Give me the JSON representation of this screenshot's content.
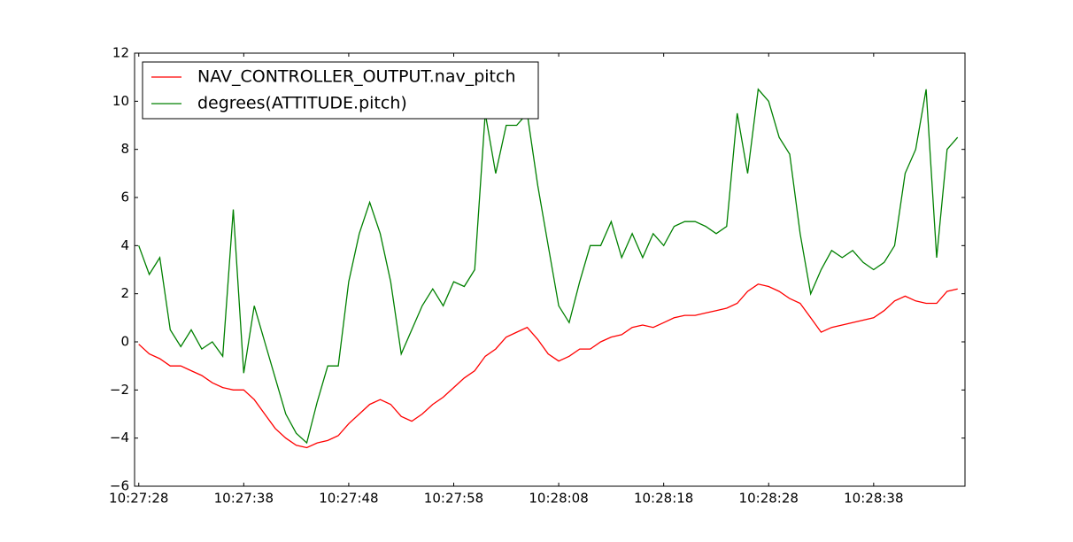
{
  "chart_data": {
    "type": "line",
    "x": [
      "10:27:28",
      "10:27:29",
      "10:27:30",
      "10:27:31",
      "10:27:32",
      "10:27:33",
      "10:27:34",
      "10:27:35",
      "10:27:36",
      "10:27:37",
      "10:27:38",
      "10:27:39",
      "10:27:40",
      "10:27:41",
      "10:27:42",
      "10:27:43",
      "10:27:44",
      "10:27:45",
      "10:27:46",
      "10:27:47",
      "10:27:48",
      "10:27:49",
      "10:27:50",
      "10:27:51",
      "10:27:52",
      "10:27:53",
      "10:27:54",
      "10:27:55",
      "10:27:56",
      "10:27:57",
      "10:27:58",
      "10:27:59",
      "10:28:00",
      "10:28:01",
      "10:28:02",
      "10:28:03",
      "10:28:04",
      "10:28:05",
      "10:28:06",
      "10:28:07",
      "10:28:08",
      "10:28:09",
      "10:28:10",
      "10:28:11",
      "10:28:12",
      "10:28:13",
      "10:28:14",
      "10:28:15",
      "10:28:16",
      "10:28:17",
      "10:28:18",
      "10:28:19",
      "10:28:20",
      "10:28:21",
      "10:28:22",
      "10:28:23",
      "10:28:24",
      "10:28:25",
      "10:28:26",
      "10:28:27",
      "10:28:28",
      "10:28:29",
      "10:28:30",
      "10:28:31",
      "10:28:32",
      "10:28:33",
      "10:28:34",
      "10:28:35",
      "10:28:36",
      "10:28:37",
      "10:28:38",
      "10:28:39",
      "10:28:40",
      "10:28:41",
      "10:28:42",
      "10:28:43",
      "10:28:44",
      "10:28:45",
      "10:28:46"
    ],
    "series": [
      {
        "name": "NAV_CONTROLLER_OUTPUT.nav_pitch",
        "color": "#ff0000",
        "values": [
          -0.1,
          -0.5,
          -0.7,
          -1.0,
          -1.0,
          -1.2,
          -1.4,
          -1.7,
          -1.9,
          -2.0,
          -2.0,
          -2.4,
          -3.0,
          -3.6,
          -4.0,
          -4.3,
          -4.4,
          -4.2,
          -4.1,
          -3.9,
          -3.4,
          -3.0,
          -2.6,
          -2.4,
          -2.6,
          -3.1,
          -3.3,
          -3.0,
          -2.6,
          -2.3,
          -1.9,
          -1.5,
          -1.2,
          -0.6,
          -0.3,
          0.2,
          0.4,
          0.6,
          0.1,
          -0.5,
          -0.8,
          -0.6,
          -0.3,
          -0.3,
          0.0,
          0.2,
          0.3,
          0.6,
          0.7,
          0.6,
          0.8,
          1.0,
          1.1,
          1.1,
          1.2,
          1.3,
          1.4,
          1.6,
          2.1,
          2.4,
          2.3,
          2.1,
          1.8,
          1.6,
          1.0,
          0.4,
          0.6,
          0.7,
          0.8,
          0.9,
          1.0,
          1.3,
          1.7,
          1.9,
          1.7,
          1.6,
          1.6,
          2.1,
          2.2
        ]
      },
      {
        "name": "degrees(ATTITUDE.pitch)",
        "color": "#008000",
        "values": [
          4.0,
          2.8,
          3.5,
          0.5,
          -0.2,
          0.5,
          -0.3,
          0.0,
          -0.6,
          5.5,
          -1.3,
          1.5,
          0.0,
          -1.5,
          -3.0,
          -3.8,
          -4.2,
          -2.5,
          -1.0,
          -1.0,
          2.5,
          4.5,
          5.8,
          4.5,
          2.5,
          -0.5,
          0.5,
          1.5,
          2.2,
          1.5,
          2.5,
          2.3,
          3.0,
          9.5,
          7.0,
          9.0,
          9.0,
          9.5,
          6.5,
          4.0,
          1.5,
          0.8,
          2.5,
          4.0,
          4.0,
          5.0,
          3.5,
          4.5,
          3.5,
          4.5,
          4.0,
          4.8,
          5.0,
          5.0,
          4.8,
          4.5,
          4.8,
          9.5,
          7.0,
          10.5,
          10.0,
          8.5,
          7.8,
          4.5,
          2.0,
          3.0,
          3.8,
          3.5,
          3.8,
          3.3,
          3.0,
          3.3,
          4.0,
          7.0,
          8.0,
          10.5,
          3.5,
          8.0,
          8.5
        ]
      }
    ],
    "xlim": [
      "10:27:27.6",
      "10:28:46.7"
    ],
    "xticks": [
      "10:27:28",
      "10:27:38",
      "10:27:48",
      "10:27:58",
      "10:28:08",
      "10:28:18",
      "10:28:28",
      "10:28:38"
    ],
    "ylim": [
      -6,
      12
    ],
    "yticks": [
      {
        "value": -6,
        "label": "−6"
      },
      {
        "value": -4,
        "label": "−4"
      },
      {
        "value": -2,
        "label": "−2"
      },
      0,
      2,
      4,
      6,
      8,
      10,
      12
    ],
    "legend": "upper left"
  }
}
